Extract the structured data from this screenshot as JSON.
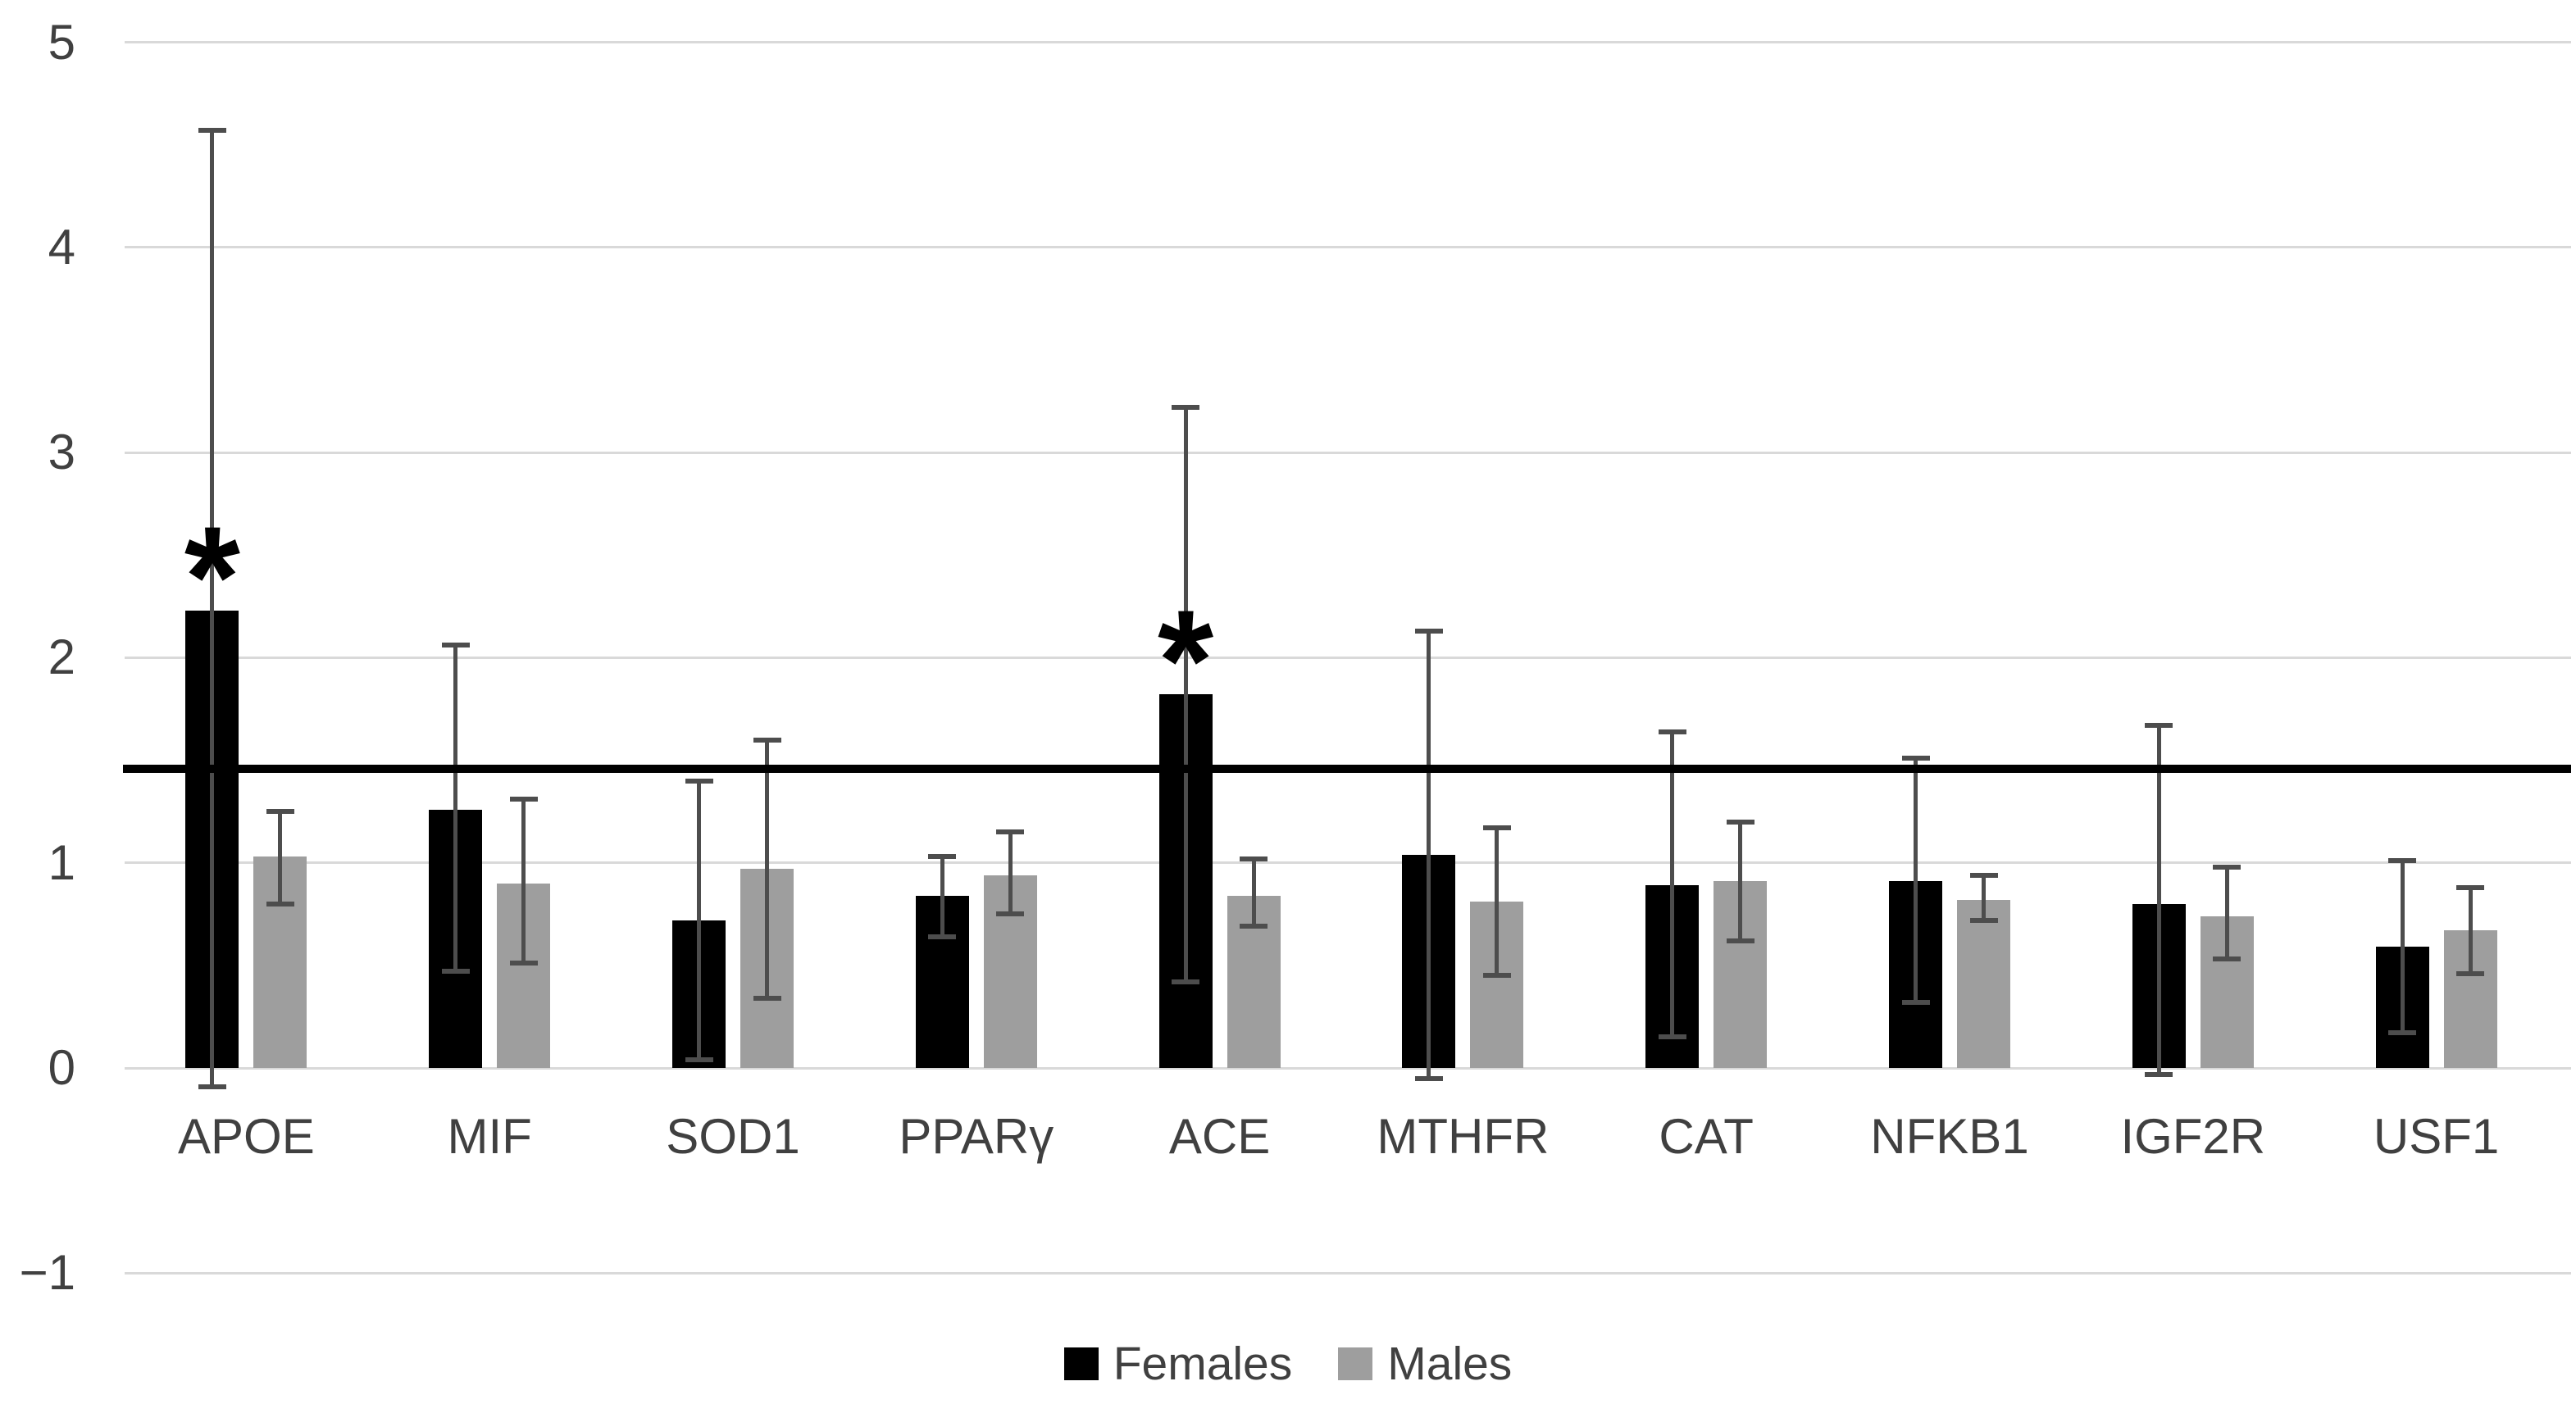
{
  "chart_data": {
    "type": "bar",
    "title": "",
    "xlabel": "",
    "ylabel": "",
    "categories": [
      "APOE",
      "MIF",
      "SOD1",
      "PPARγ",
      "ACE",
      "MTHFR",
      "CAT",
      "NFKB1",
      "IGF2R",
      "USF1"
    ],
    "series": [
      {
        "name": "Females",
        "color": "#000000",
        "values": [
          2.23,
          1.26,
          0.72,
          0.84,
          1.82,
          1.04,
          0.89,
          0.91,
          0.8,
          0.59
        ],
        "error_low": [
          -0.09,
          0.47,
          0.04,
          0.64,
          0.42,
          -0.05,
          0.15,
          0.32,
          -0.03,
          0.17
        ],
        "error_high": [
          4.57,
          2.06,
          1.4,
          1.03,
          3.22,
          2.13,
          1.64,
          1.51,
          1.67,
          1.01
        ]
      },
      {
        "name": "Males",
        "color": "#9e9e9e",
        "values": [
          1.03,
          0.9,
          0.97,
          0.94,
          0.84,
          0.81,
          0.91,
          0.82,
          0.74,
          0.67
        ],
        "error_low": [
          0.8,
          0.51,
          0.34,
          0.75,
          0.69,
          0.45,
          0.62,
          0.72,
          0.53,
          0.46
        ],
        "error_high": [
          1.25,
          1.31,
          1.6,
          1.15,
          1.02,
          1.17,
          1.2,
          0.94,
          0.98,
          0.88
        ]
      }
    ],
    "significance_markers": [
      {
        "category": "APOE",
        "series": "Females",
        "marker": "*"
      },
      {
        "category": "ACE",
        "series": "Females",
        "marker": "*"
      }
    ],
    "reference_line": {
      "value": 1.46,
      "color": "#000000"
    },
    "y_axis": {
      "min": -1,
      "max": 5,
      "ticks": [
        5,
        4,
        3,
        2,
        1,
        0,
        -1
      ]
    },
    "grid": true,
    "legend_position": "bottom",
    "colors": {
      "gridline": "#d9d9d9",
      "error_bar": "#4d4d4d",
      "axis_text": "#404040",
      "background": "#ffffff"
    }
  }
}
